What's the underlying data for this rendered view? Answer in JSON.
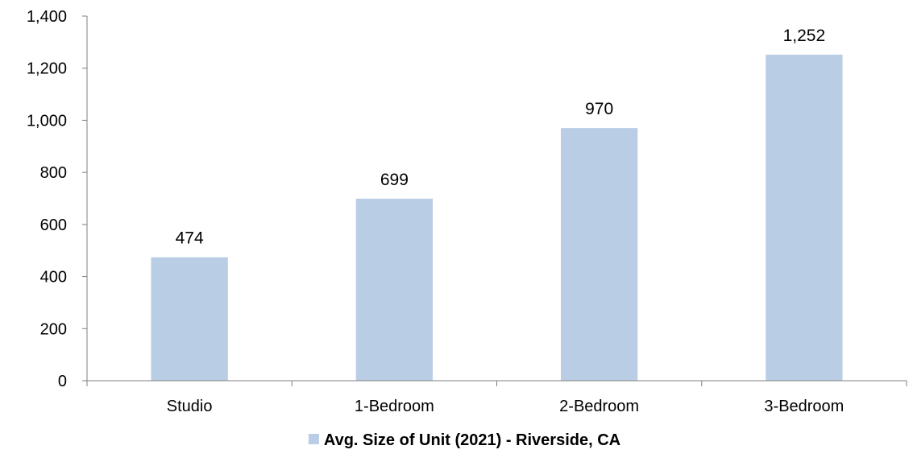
{
  "chart_data": {
    "type": "bar",
    "categories": [
      "Studio",
      "1-Bedroom",
      "2-Bedroom",
      "3-Bedroom"
    ],
    "series": [
      {
        "name": "Avg. Size of Unit (2021) - Riverside, CA",
        "values": [
          474,
          699,
          970,
          1252
        ],
        "data_labels": [
          "474",
          "699",
          "970",
          "1,252"
        ],
        "color": "#b9cde5"
      }
    ],
    "yticks": [
      0,
      200,
      400,
      600,
      800,
      1000,
      1200,
      1400
    ],
    "ytick_labels": [
      "0",
      "200",
      "400",
      "600",
      "800",
      "1,000",
      "1,200",
      "1,400"
    ],
    "ylim": [
      0,
      1400
    ],
    "title": "",
    "xlabel": "",
    "ylabel": "",
    "grid": false,
    "legend_position": "bottom-center"
  }
}
